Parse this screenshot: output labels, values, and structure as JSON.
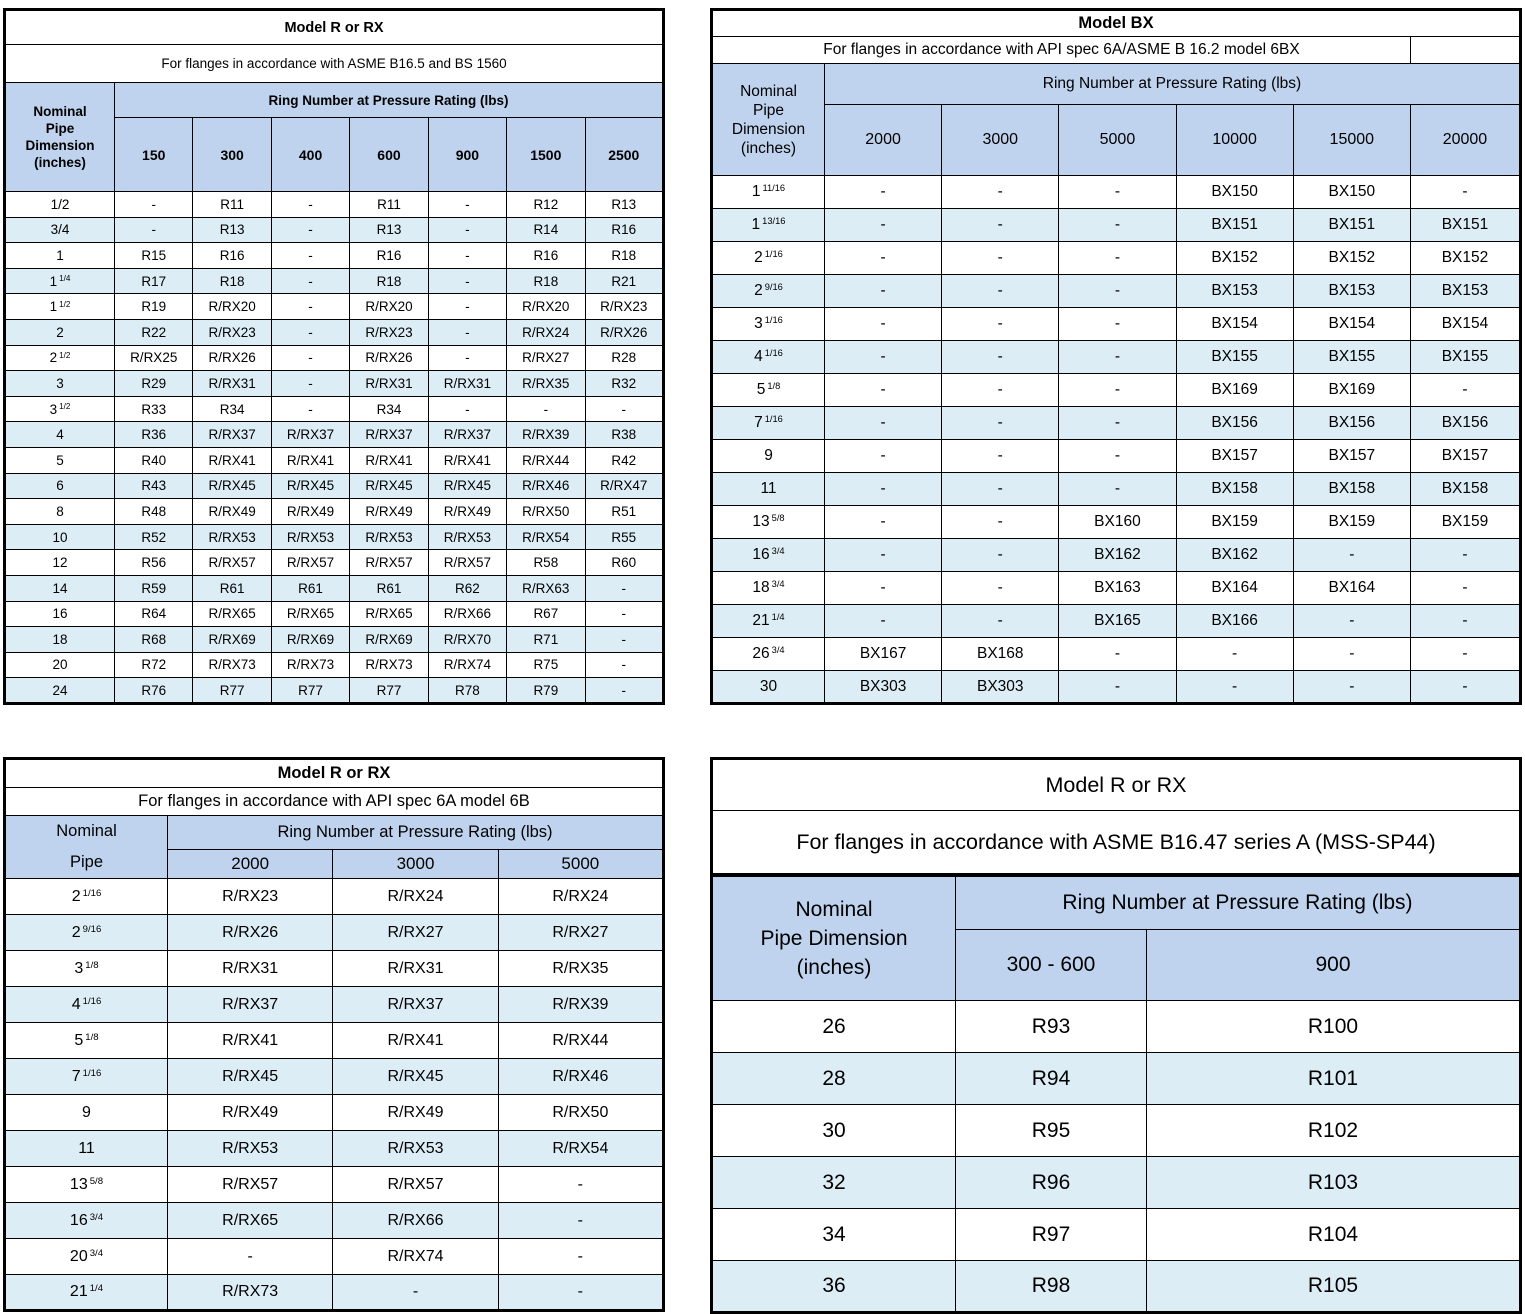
{
  "colors": {
    "header_fill": "#bfd3ee",
    "stripe_fill": "#dcedf5",
    "border": "#000000",
    "background": "#ffffff"
  },
  "tables": {
    "asme_b165": {
      "title": "Model R or RX",
      "subtitle": "For flanges in accordance with ASME B16.5 and BS 1560",
      "pipe_header": [
        "Nominal",
        "Pipe",
        "Dimension",
        "(inches)"
      ],
      "group_header": "Ring Number at Pressure Rating (lbs)",
      "pressures": [
        "150",
        "300",
        "400",
        "600",
        "900",
        "1500",
        "2500"
      ],
      "rows": [
        {
          "size": "1/2",
          "frac": "",
          "cells": [
            "-",
            "R11",
            "-",
            "R11",
            "-",
            "R12",
            "R13"
          ]
        },
        {
          "size": "3/4",
          "frac": "",
          "cells": [
            "-",
            "R13",
            "-",
            "R13",
            "-",
            "R14",
            "R16"
          ]
        },
        {
          "size": "1",
          "frac": "",
          "cells": [
            "R15",
            "R16",
            "-",
            "R16",
            "-",
            "R16",
            "R18"
          ]
        },
        {
          "size": "1",
          "frac": "1/4",
          "cells": [
            "R17",
            "R18",
            "-",
            "R18",
            "-",
            "R18",
            "R21"
          ]
        },
        {
          "size": "1",
          "frac": "1/2",
          "cells": [
            "R19",
            "R/RX20",
            "-",
            "R/RX20",
            "-",
            "R/RX20",
            "R/RX23"
          ]
        },
        {
          "size": "2",
          "frac": "",
          "cells": [
            "R22",
            "R/RX23",
            "-",
            "R/RX23",
            "-",
            "R/RX24",
            "R/RX26"
          ]
        },
        {
          "size": "2",
          "frac": "1/2",
          "cells": [
            "R/RX25",
            "R/RX26",
            "-",
            "R/RX26",
            "-",
            "R/RX27",
            "R28"
          ]
        },
        {
          "size": "3",
          "frac": "",
          "cells": [
            "R29",
            "R/RX31",
            "-",
            "R/RX31",
            "R/RX31",
            "R/RX35",
            "R32"
          ]
        },
        {
          "size": "3",
          "frac": "1/2",
          "cells": [
            "R33",
            "R34",
            "-",
            "R34",
            "-",
            "-",
            "-"
          ]
        },
        {
          "size": "4",
          "frac": "",
          "cells": [
            "R36",
            "R/RX37",
            "R/RX37",
            "R/RX37",
            "R/RX37",
            "R/RX39",
            "R38"
          ]
        },
        {
          "size": "5",
          "frac": "",
          "cells": [
            "R40",
            "R/RX41",
            "R/RX41",
            "R/RX41",
            "R/RX41",
            "R/RX44",
            "R42"
          ]
        },
        {
          "size": "6",
          "frac": "",
          "cells": [
            "R43",
            "R/RX45",
            "R/RX45",
            "R/RX45",
            "R/RX45",
            "R/RX46",
            "R/RX47"
          ]
        },
        {
          "size": "8",
          "frac": "",
          "cells": [
            "R48",
            "R/RX49",
            "R/RX49",
            "R/RX49",
            "R/RX49",
            "R/RX50",
            "R51"
          ]
        },
        {
          "size": "10",
          "frac": "",
          "cells": [
            "R52",
            "R/RX53",
            "R/RX53",
            "R/RX53",
            "R/RX53",
            "R/RX54",
            "R55"
          ]
        },
        {
          "size": "12",
          "frac": "",
          "cells": [
            "R56",
            "R/RX57",
            "R/RX57",
            "R/RX57",
            "R/RX57",
            "R58",
            "R60"
          ]
        },
        {
          "size": "14",
          "frac": "",
          "cells": [
            "R59",
            "R61",
            "R61",
            "R61",
            "R62",
            "R/RX63",
            "-"
          ]
        },
        {
          "size": "16",
          "frac": "",
          "cells": [
            "R64",
            "R/RX65",
            "R/RX65",
            "R/RX65",
            "R/RX66",
            "R67",
            "-"
          ]
        },
        {
          "size": "18",
          "frac": "",
          "cells": [
            "R68",
            "R/RX69",
            "R/RX69",
            "R/RX69",
            "R/RX70",
            "R71",
            "-"
          ]
        },
        {
          "size": "20",
          "frac": "",
          "cells": [
            "R72",
            "R/RX73",
            "R/RX73",
            "R/RX73",
            "R/RX74",
            "R75",
            "-"
          ]
        },
        {
          "size": "24",
          "frac": "",
          "cells": [
            "R76",
            "R77",
            "R77",
            "R77",
            "R78",
            "R79",
            "-"
          ]
        }
      ]
    },
    "api_6bx": {
      "title": "Model BX",
      "subtitle": "For flanges in accordance with API spec 6A/ASME B 16.2 model 6BX",
      "pipe_header": [
        "Nominal",
        "Pipe",
        "Dimension",
        "(inches)"
      ],
      "group_header": "Ring Number at Pressure Rating (lbs)",
      "pressures": [
        "2000",
        "3000",
        "5000",
        "10000",
        "15000",
        "20000"
      ],
      "rows": [
        {
          "size": "1",
          "frac": "11/16",
          "cells": [
            "-",
            "-",
            "-",
            "BX150",
            "BX150",
            "-"
          ]
        },
        {
          "size": "1",
          "frac": "13/16",
          "cells": [
            "-",
            "-",
            "-",
            "BX151",
            "BX151",
            "BX151"
          ]
        },
        {
          "size": "2",
          "frac": "1/16",
          "cells": [
            "-",
            "-",
            "-",
            "BX152",
            "BX152",
            "BX152"
          ]
        },
        {
          "size": "2",
          "frac": "9/16",
          "cells": [
            "-",
            "-",
            "-",
            "BX153",
            "BX153",
            "BX153"
          ]
        },
        {
          "size": "3",
          "frac": "1/16",
          "cells": [
            "-",
            "-",
            "-",
            "BX154",
            "BX154",
            "BX154"
          ]
        },
        {
          "size": "4",
          "frac": "1/16",
          "cells": [
            "-",
            "-",
            "-",
            "BX155",
            "BX155",
            "BX155"
          ]
        },
        {
          "size": "5",
          "frac": "1/8",
          "cells": [
            "-",
            "-",
            "-",
            "BX169",
            "BX169",
            "-"
          ]
        },
        {
          "size": "7",
          "frac": "1/16",
          "cells": [
            "-",
            "-",
            "-",
            "BX156",
            "BX156",
            "BX156"
          ]
        },
        {
          "size": "9",
          "frac": "",
          "cells": [
            "-",
            "-",
            "-",
            "BX157",
            "BX157",
            "BX157"
          ]
        },
        {
          "size": "11",
          "frac": "",
          "cells": [
            "-",
            "-",
            "-",
            "BX158",
            "BX158",
            "BX158"
          ]
        },
        {
          "size": "13",
          "frac": "5/8",
          "cells": [
            "-",
            "-",
            "BX160",
            "BX159",
            "BX159",
            "BX159"
          ]
        },
        {
          "size": "16",
          "frac": "3/4",
          "cells": [
            "-",
            "-",
            "BX162",
            "BX162",
            "-",
            "-"
          ]
        },
        {
          "size": "18",
          "frac": "3/4",
          "cells": [
            "-",
            "-",
            "BX163",
            "BX164",
            "BX164",
            "-"
          ]
        },
        {
          "size": "21",
          "frac": "1/4",
          "cells": [
            "-",
            "-",
            "BX165",
            "BX166",
            "-",
            "-"
          ]
        },
        {
          "size": "26",
          "frac": "3/4",
          "cells": [
            "BX167",
            "BX168",
            "-",
            "-",
            "-",
            "-"
          ]
        },
        {
          "size": "30",
          "frac": "",
          "cells": [
            "BX303",
            "BX303",
            "-",
            "-",
            "-",
            "-"
          ]
        }
      ]
    },
    "api_6b": {
      "title": "Model R or RX",
      "subtitle": "For flanges in accordance with API spec 6A model 6B",
      "pipe_header": [
        "Nominal",
        "Pipe"
      ],
      "group_header": "Ring Number at Pressure Rating (lbs)",
      "pressures": [
        "2000",
        "3000",
        "5000"
      ],
      "rows": [
        {
          "size": "2",
          "frac": "1/16",
          "cells": [
            "R/RX23",
            "R/RX24",
            "R/RX24"
          ]
        },
        {
          "size": "2",
          "frac": "9/16",
          "cells": [
            "R/RX26",
            "R/RX27",
            "R/RX27"
          ]
        },
        {
          "size": "3",
          "frac": "1/8",
          "cells": [
            "R/RX31",
            "R/RX31",
            "R/RX35"
          ]
        },
        {
          "size": "4",
          "frac": "1/16",
          "cells": [
            "R/RX37",
            "R/RX37",
            "R/RX39"
          ]
        },
        {
          "size": "5",
          "frac": "1/8",
          "cells": [
            "R/RX41",
            "R/RX41",
            "R/RX44"
          ]
        },
        {
          "size": "7",
          "frac": "1/16",
          "cells": [
            "R/RX45",
            "R/RX45",
            "R/RX46"
          ]
        },
        {
          "size": "9",
          "frac": "",
          "cells": [
            "R/RX49",
            "R/RX49",
            "R/RX50"
          ]
        },
        {
          "size": "11",
          "frac": "",
          "cells": [
            "R/RX53",
            "R/RX53",
            "R/RX54"
          ]
        },
        {
          "size": "13",
          "frac": "5/8",
          "cells": [
            "R/RX57",
            "R/RX57",
            "-"
          ]
        },
        {
          "size": "16",
          "frac": "3/4",
          "cells": [
            "R/RX65",
            "R/RX66",
            "-"
          ]
        },
        {
          "size": "20",
          "frac": "3/4",
          "cells": [
            "-",
            "R/RX74",
            "-"
          ]
        },
        {
          "size": "21",
          "frac": "1/4",
          "cells": [
            "R/RX73",
            "-",
            "-"
          ]
        }
      ]
    },
    "asme_b1647": {
      "title": "Model R or RX",
      "subtitle": "For flanges in accordance with ASME B16.47 series A (MSS-SP44)",
      "pipe_header": [
        "Nominal",
        "Pipe Dimension",
        "(inches)"
      ],
      "group_header": "Ring Number at Pressure Rating (lbs)",
      "pressures": [
        "300 - 600",
        "900"
      ],
      "rows": [
        {
          "size": "26",
          "frac": "",
          "cells": [
            "R93",
            "R100"
          ]
        },
        {
          "size": "28",
          "frac": "",
          "cells": [
            "R94",
            "R101"
          ]
        },
        {
          "size": "30",
          "frac": "",
          "cells": [
            "R95",
            "R102"
          ]
        },
        {
          "size": "32",
          "frac": "",
          "cells": [
            "R96",
            "R103"
          ]
        },
        {
          "size": "34",
          "frac": "",
          "cells": [
            "R97",
            "R104"
          ]
        },
        {
          "size": "36",
          "frac": "",
          "cells": [
            "R98",
            "R105"
          ]
        }
      ]
    }
  }
}
